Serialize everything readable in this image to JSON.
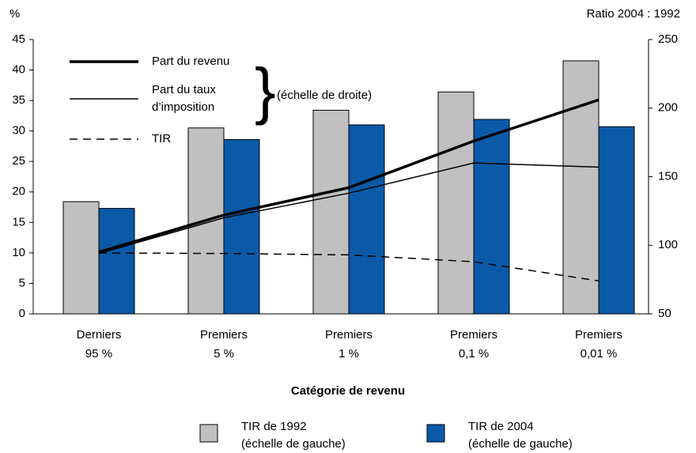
{
  "chart_data": {
    "type": "bar_line",
    "y_label": "%",
    "y2_label": "Ratio 2004 : 1992",
    "x_title": "Catégorie de revenu",
    "annotation": "(échelle de droite)",
    "categories": [
      [
        "Derniers",
        "95 %"
      ],
      [
        "Premiers",
        "5 %"
      ],
      [
        "Premiers",
        "1 %"
      ],
      [
        "Premiers",
        "0,1 %"
      ],
      [
        "Premiers",
        "0,01 %"
      ]
    ],
    "ylim": [
      0,
      45
    ],
    "yticks": [
      0,
      5,
      10,
      15,
      20,
      25,
      30,
      35,
      40,
      45
    ],
    "y2lim": [
      50,
      250
    ],
    "y2ticks": [
      50,
      100,
      150,
      200,
      250
    ],
    "series": [
      {
        "name": [
          "TIR de 1992",
          "(échelle de gauche)"
        ],
        "type": "bar",
        "color": "#c0c0c0",
        "values": [
          18.4,
          30.5,
          33.4,
          36.4,
          41.5
        ]
      },
      {
        "name": [
          "TIR de 2004",
          "(échelle de gauche)"
        ],
        "type": "bar",
        "color": "#0a5aa8",
        "values": [
          17.3,
          28.6,
          31.0,
          31.9,
          30.7
        ]
      },
      {
        "name": [
          "Part du revenu"
        ],
        "type": "line",
        "axis": "y2",
        "color": "#000000",
        "width": 3.5,
        "dash": "none",
        "values": [
          95,
          122,
          142,
          176,
          206
        ]
      },
      {
        "name": [
          "Part du taux",
          "d’imposition"
        ],
        "type": "line",
        "axis": "y2",
        "color": "#000000",
        "width": 1.5,
        "dash": "none",
        "values": [
          94,
          120,
          138,
          160,
          157
        ]
      },
      {
        "name": [
          "TIR"
        ],
        "type": "line",
        "axis": "y2",
        "color": "#000000",
        "width": 1.5,
        "dash": "10,7",
        "values": [
          94.4,
          94,
          93,
          88,
          74
        ]
      }
    ]
  }
}
